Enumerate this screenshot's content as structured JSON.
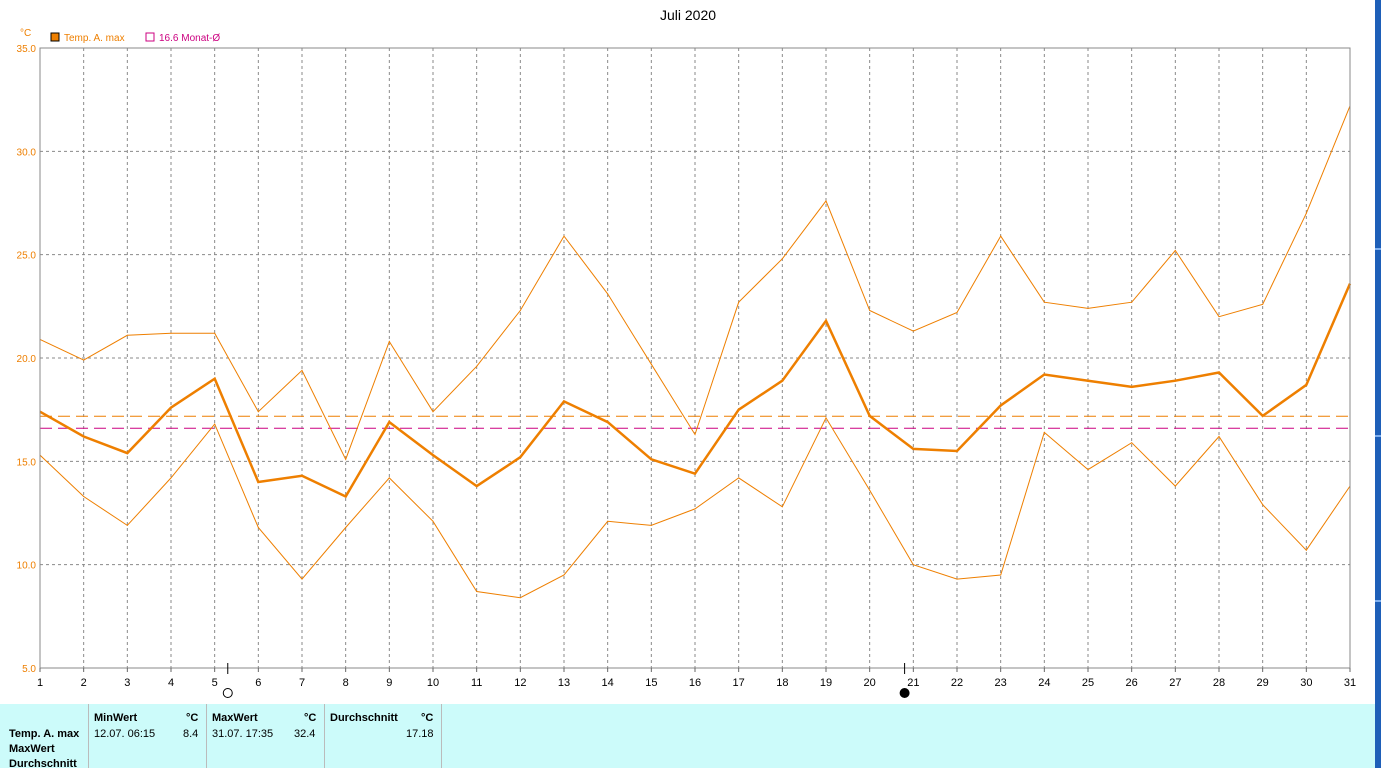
{
  "chart_data": {
    "type": "line",
    "title": "Juli 2020",
    "ylabel": "°C",
    "xlabel": "",
    "ylim": [
      5,
      35
    ],
    "xlim": [
      1,
      31
    ],
    "grid": true,
    "yticks": [
      "5.0",
      "10.0",
      "15.0",
      "20.0",
      "25.0",
      "30.0",
      "35.0"
    ],
    "x": [
      1,
      2,
      3,
      4,
      5,
      6,
      7,
      8,
      9,
      10,
      11,
      12,
      13,
      14,
      15,
      16,
      17,
      18,
      19,
      20,
      21,
      22,
      23,
      24,
      25,
      26,
      27,
      28,
      29,
      30,
      31
    ],
    "legend": [
      {
        "label": "Temp. A. max",
        "color": "#ee7f00"
      },
      {
        "label": "16.6 Monat-Ø",
        "color": "#cc0080"
      }
    ],
    "series": [
      {
        "name": "Temp. A. max",
        "role": "mean",
        "color": "#ee7f00",
        "values": [
          17.4,
          16.2,
          15.4,
          17.6,
          19.0,
          14.0,
          14.3,
          13.3,
          16.9,
          15.3,
          13.8,
          15.2,
          17.9,
          16.9,
          15.1,
          14.4,
          17.5,
          18.9,
          21.8,
          17.2,
          15.6,
          15.5,
          17.7,
          19.2,
          18.9,
          18.6,
          18.9,
          19.3,
          17.2,
          18.7,
          23.6
        ]
      },
      {
        "role": "max",
        "color": "#ee7f00",
        "values": [
          20.9,
          19.9,
          21.1,
          21.2,
          21.2,
          17.4,
          19.4,
          15.1,
          20.8,
          17.4,
          19.6,
          22.3,
          25.9,
          23.1,
          19.7,
          16.3,
          22.7,
          24.8,
          27.6,
          22.3,
          21.3,
          22.2,
          25.9,
          22.7,
          22.4,
          22.7,
          25.2,
          22.0,
          22.6,
          27.0,
          32.2
        ]
      },
      {
        "role": "min",
        "color": "#ee7f00",
        "values": [
          15.3,
          13.3,
          11.9,
          14.2,
          16.8,
          11.8,
          9.3,
          11.8,
          14.2,
          12.1,
          8.7,
          8.4,
          9.5,
          12.1,
          11.9,
          12.7,
          14.2,
          12.8,
          17.1,
          13.6,
          10.0,
          9.3,
          9.5,
          16.4,
          14.6,
          15.9,
          13.8,
          16.2,
          12.9,
          10.7,
          13.8
        ]
      }
    ],
    "reference_lines": [
      {
        "value": 17.18,
        "color": "#ee7f00",
        "style": "dashed"
      },
      {
        "value": 16.6,
        "color": "#cc0080",
        "style": "dashed"
      }
    ],
    "moon_markers": [
      {
        "day": 5.3,
        "phase": "full-moon"
      },
      {
        "day": 20.8,
        "phase": "new-moon"
      }
    ]
  },
  "stats_table": {
    "row_labels": [
      "Temp. A. max",
      "MaxWert",
      "Durchschnitt"
    ],
    "min_header": "MinWert",
    "min_unit": "°C",
    "min_date": "12.07.  06:15",
    "min_value": "8.4",
    "max_header": "MaxWert",
    "max_unit": "°C",
    "max_date": "31.07.  17:35",
    "max_value": "32.4",
    "avg_header": "Durchschnitt",
    "avg_unit": "°C",
    "avg_value": "17.18"
  }
}
